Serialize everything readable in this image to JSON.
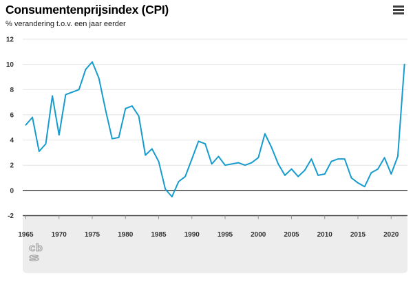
{
  "header": {
    "title": "Consumentenprijsindex (CPI)",
    "subtitle": "% verandering t.o.v. een jaar eerder"
  },
  "menu": {
    "icon": "hamburger-menu-icon",
    "label": "chart menu"
  },
  "footer": {
    "logo": "cbs-logo",
    "logo_text_top": "cb",
    "logo_text_bottom": "s"
  },
  "colors": {
    "line": "#159bce",
    "grid": "#e4e4e4",
    "axis": "#424242",
    "tick": "#8f8f8f",
    "label": "#333333",
    "panel_bg": "#ededed",
    "logo": "#a6a6a6",
    "menu": "#3d3d3d"
  },
  "chart_data": {
    "type": "line",
    "title": "Consumentenprijsindex (CPI)",
    "ylabel": "% verandering t.o.v. een jaar eerder",
    "xlabel": "",
    "grid": true,
    "legend": "none",
    "ylim": [
      -2,
      12
    ],
    "yticks": [
      -2,
      0,
      2,
      4,
      6,
      8,
      10,
      12
    ],
    "xticks": [
      1965,
      1970,
      1975,
      1980,
      1985,
      1990,
      1995,
      2000,
      2005,
      2010,
      2015,
      2020
    ],
    "x": [
      1965,
      1966,
      1967,
      1968,
      1969,
      1970,
      1971,
      1972,
      1973,
      1974,
      1975,
      1976,
      1977,
      1978,
      1979,
      1980,
      1981,
      1982,
      1983,
      1984,
      1985,
      1986,
      1987,
      1988,
      1989,
      1990,
      1991,
      1992,
      1993,
      1994,
      1995,
      1996,
      1997,
      1998,
      1999,
      2000,
      2001,
      2002,
      2003,
      2004,
      2005,
      2006,
      2007,
      2008,
      2009,
      2010,
      2011,
      2012,
      2013,
      2014,
      2015,
      2016,
      2017,
      2018,
      2019,
      2020,
      2021,
      2022
    ],
    "series": [
      {
        "name": "CPI, % verandering t.o.v. een jaar eerder",
        "values": [
          5.2,
          5.8,
          3.1,
          3.7,
          7.5,
          4.4,
          7.6,
          7.8,
          8.0,
          9.6,
          10.2,
          8.9,
          6.4,
          4.1,
          4.2,
          6.5,
          6.7,
          5.9,
          2.8,
          3.3,
          2.3,
          0.1,
          -0.5,
          0.7,
          1.1,
          2.5,
          3.9,
          3.7,
          2.1,
          2.7,
          2.0,
          2.1,
          2.2,
          2.0,
          2.2,
          2.6,
          4.5,
          3.4,
          2.1,
          1.2,
          1.7,
          1.1,
          1.6,
          2.5,
          1.2,
          1.3,
          2.3,
          2.5,
          2.5,
          1.0,
          0.6,
          0.3,
          1.4,
          1.7,
          2.6,
          1.3,
          2.7,
          10.0
        ]
      }
    ]
  }
}
